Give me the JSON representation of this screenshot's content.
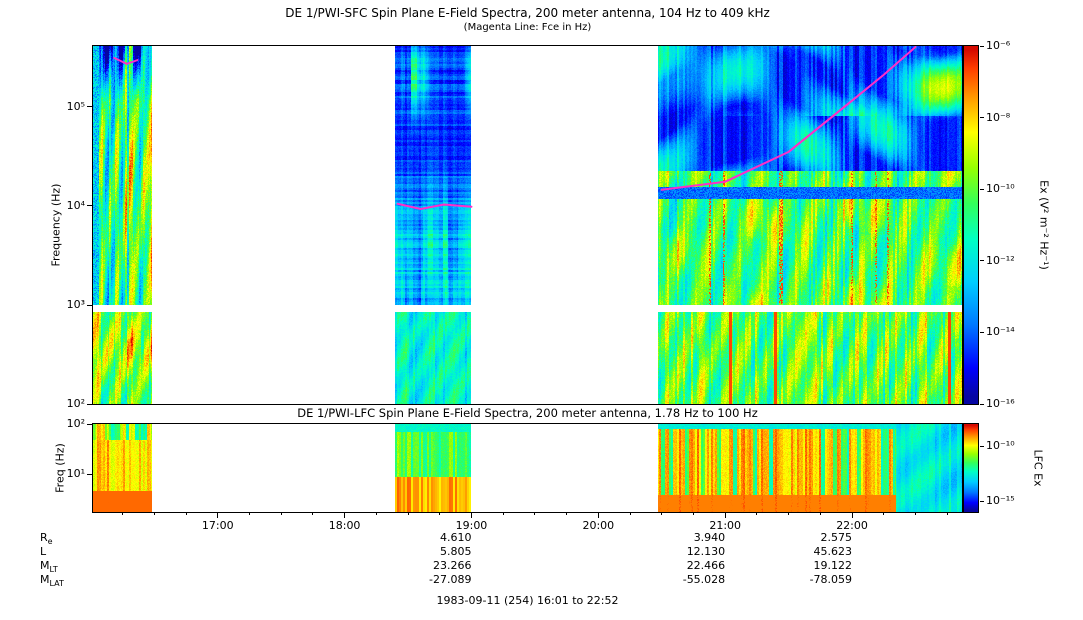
{
  "chart_data": {
    "type": "heatmap",
    "subtype": "spectrogram",
    "time_axis": {
      "start": "16:01",
      "end": "22:52",
      "ticks": [
        "17:00",
        "18:00",
        "19:00",
        "20:00",
        "21:00",
        "22:00"
      ]
    },
    "sfc": {
      "title": "DE 1/PWI-SFC  Spin Plane E-Field Spectra, 200 meter antenna, 104 Hz to 409 kHz",
      "subtitle": "(Magenta Line: Fce in Hz)",
      "ylabel": "Frequency (Hz)",
      "freq_range_hz": [
        104,
        409000
      ],
      "band_break_hz": 1000,
      "yticks": [
        {
          "exp": 5,
          "label": "10⁵"
        },
        {
          "exp": 4,
          "label": "10⁴"
        },
        {
          "exp": 3,
          "label": "10³"
        },
        {
          "exp": 2,
          "label": "10²"
        }
      ],
      "colorbar": {
        "label": "Ex (V² m⁻² Hz⁻¹)",
        "range_exp": [
          -6,
          -16
        ],
        "ticks": [
          {
            "exp": -6,
            "label": "10⁻⁶"
          },
          {
            "exp": -8,
            "label": "10⁻⁸"
          },
          {
            "exp": -10,
            "label": "10⁻¹⁰"
          },
          {
            "exp": -12,
            "label": "10⁻¹²"
          },
          {
            "exp": -14,
            "label": "10⁻¹⁴"
          },
          {
            "exp": -16,
            "label": "10⁻¹⁶"
          }
        ]
      },
      "segments": [
        {
          "start": "16:01",
          "end": "16:29",
          "style": "burst"
        },
        {
          "start": "18:24",
          "end": "19:00",
          "style": "quiet"
        },
        {
          "start": "20:28",
          "end": "22:52",
          "style": "storm"
        }
      ],
      "fce_line": {
        "color": "#ff2ec8",
        "segments": [
          [
            [
              "16:11",
              310000
            ],
            [
              "16:17",
              270000
            ],
            [
              "16:22",
              295000
            ]
          ],
          [
            [
              "18:25",
              10500
            ],
            [
              "18:36",
              9300
            ],
            [
              "18:47",
              10300
            ],
            [
              "19:00",
              9800
            ]
          ],
          [
            [
              "20:30",
              14500
            ],
            [
              "21:00",
              17500
            ],
            [
              "21:30",
              35000
            ],
            [
              "22:00",
              115000
            ],
            [
              "22:15",
              210000
            ],
            [
              "22:30",
              400000
            ]
          ]
        ]
      }
    },
    "lfc": {
      "title": "DE 1/PWI-LFC  Spin Plane E-Field Spectra, 200 meter antenna, 1.78 Hz to 100 Hz",
      "ylabel": "Freq (Hz)",
      "freq_range_hz": [
        1.78,
        100
      ],
      "yticks": [
        {
          "exp": 2,
          "label": "10²"
        },
        {
          "exp": 1,
          "label": "10¹"
        }
      ],
      "colorbar": {
        "label": "LFC Ex",
        "range_exp": [
          -8,
          -16
        ],
        "ticks": [
          {
            "exp": -10,
            "label": "10⁻¹⁰"
          },
          {
            "exp": -15,
            "label": "10⁻¹⁵"
          }
        ]
      },
      "segments": [
        {
          "start": "16:01",
          "end": "16:29",
          "style": "hot"
        },
        {
          "start": "18:24",
          "end": "19:00",
          "style": "mixed"
        },
        {
          "start": "20:28",
          "end": "22:21",
          "style": "hot2"
        },
        {
          "start": "22:21",
          "end": "22:52",
          "style": "calm"
        }
      ]
    },
    "ephemeris": {
      "columns": [
        "19:00",
        "21:00",
        "22:00"
      ],
      "rows": [
        {
          "label_main": "R",
          "label_sub": "e",
          "values": [
            "4.610",
            "3.940",
            "2.575"
          ]
        },
        {
          "label_main": "L",
          "label_sub": "",
          "values": [
            "5.805",
            "12.130",
            "45.623"
          ]
        },
        {
          "label_main": "M",
          "label_sub": "LT",
          "values": [
            "23.266",
            "22.466",
            "19.122"
          ]
        },
        {
          "label_main": "M",
          "label_sub": "LAT",
          "values": [
            "-27.089",
            "-55.028",
            "-78.059"
          ]
        }
      ]
    },
    "footer": "1983-09-11 (254) 16:01 to 22:52"
  }
}
